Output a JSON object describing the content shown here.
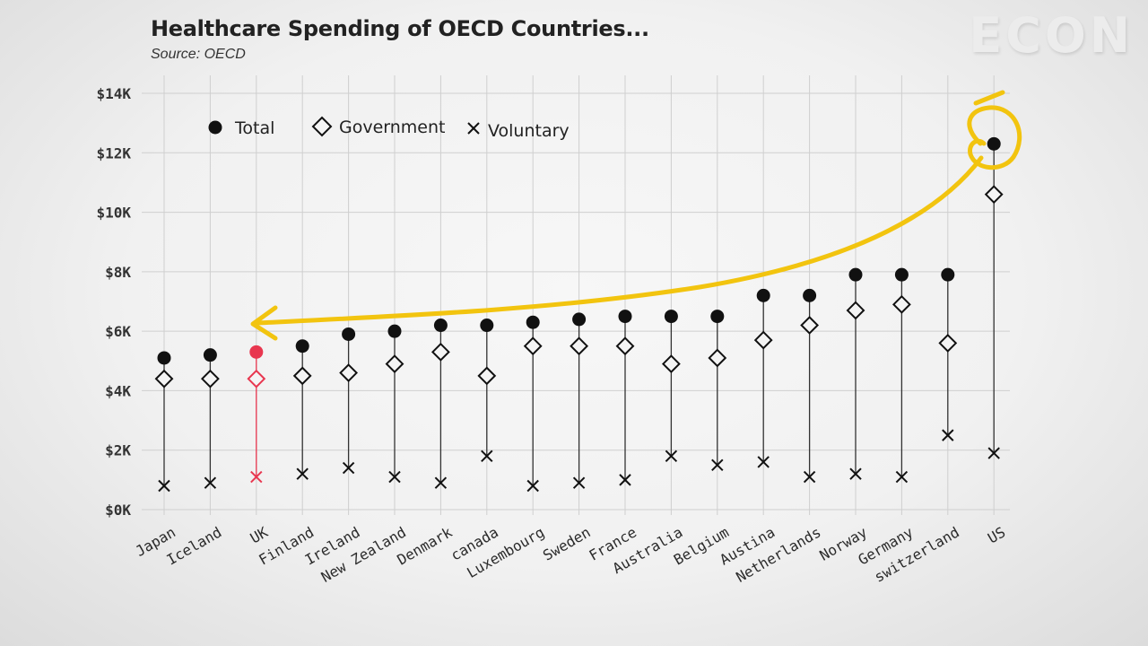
{
  "watermark": "ECON",
  "chart_data": {
    "type": "scatter",
    "title": "Healthcare Spending of OECD Countries...",
    "subtitle": "Source: OECD",
    "xlabel": "",
    "ylabel": "",
    "ylim": [
      0,
      14
    ],
    "y_unit": "thousand USD",
    "yticks": [
      0,
      2,
      4,
      6,
      8,
      10,
      12,
      14
    ],
    "ytick_labels": [
      "$0K",
      "$2K",
      "$4K",
      "$6K",
      "$8K",
      "$10K",
      "$12K",
      "$14K"
    ],
    "grid": true,
    "legend_position": "top-left",
    "categories": [
      "Japan",
      "Iceland",
      "UK",
      "Finland",
      "Ireland",
      "New Zealand",
      "Denmark",
      "canada",
      "Luxembourg",
      "Sweden",
      "France",
      "Australia",
      "Belgium",
      "Austina",
      "Netherlands",
      "Norway",
      "Germany",
      "switzerland",
      "US"
    ],
    "highlight_category": "UK",
    "highlight_color": "#e8364f",
    "annotation": "yellow arrow from US (circled) pointing back to UK",
    "annotation_color": "#f2c40f",
    "series": [
      {
        "name": "Total",
        "marker": "filled-circle",
        "values": [
          5.1,
          5.2,
          5.3,
          5.5,
          5.9,
          6.0,
          6.2,
          6.2,
          6.3,
          6.4,
          6.5,
          6.5,
          6.5,
          7.2,
          7.2,
          7.9,
          7.9,
          7.9,
          12.3
        ]
      },
      {
        "name": "Government",
        "marker": "open-diamond",
        "values": [
          4.4,
          4.4,
          4.4,
          4.5,
          4.6,
          4.9,
          5.3,
          4.5,
          5.5,
          5.5,
          5.5,
          4.9,
          5.1,
          5.7,
          6.2,
          6.7,
          6.9,
          5.6,
          10.6
        ]
      },
      {
        "name": "Voluntary",
        "marker": "x",
        "values": [
          0.8,
          0.9,
          1.1,
          1.2,
          1.4,
          1.1,
          0.9,
          1.8,
          0.8,
          0.9,
          1.0,
          1.8,
          1.5,
          1.6,
          1.1,
          1.2,
          1.1,
          2.5,
          1.9
        ]
      }
    ]
  }
}
